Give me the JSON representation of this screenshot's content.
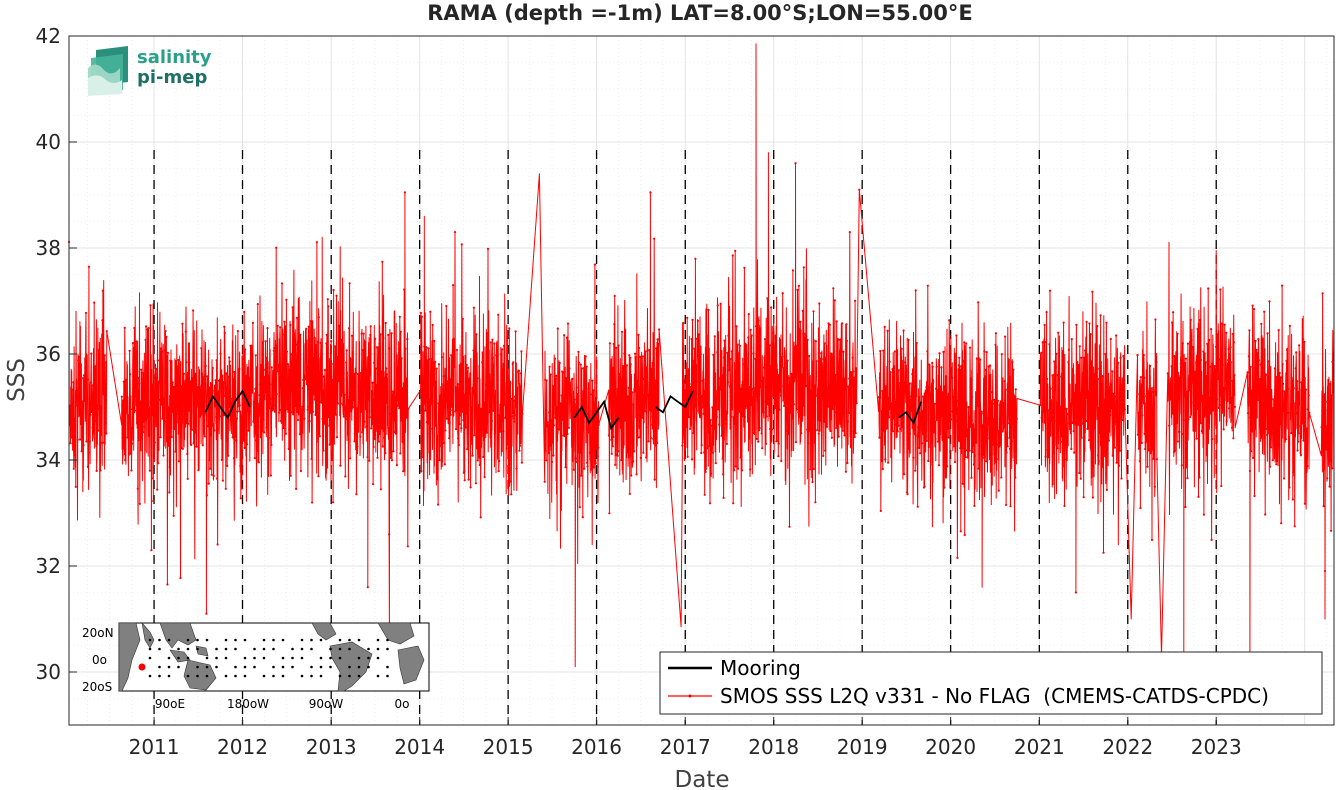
{
  "chart_data": {
    "type": "line",
    "title": "RAMA (depth =-1m) LAT=8.00°S;LON=55.00°E",
    "xlabel": "Date",
    "ylabel": "SSS",
    "xlim": [
      "2010-01-15",
      "2024-05-01"
    ],
    "ylim": [
      29,
      42
    ],
    "x_ticks": [
      "2011",
      "2012",
      "2013",
      "2014",
      "2015",
      "2016",
      "2017",
      "2018",
      "2019",
      "2020",
      "2021",
      "2022",
      "2023"
    ],
    "y_ticks": [
      "30",
      "32",
      "34",
      "36",
      "38",
      "40",
      "42"
    ],
    "grid": true,
    "year_markers": "dashed black vertical lines at each January 1",
    "legend_position": "bottom-right",
    "series": [
      {
        "name": "Mooring",
        "color": "#000000",
        "style": "line",
        "points": [
          [
            "2011-08-01",
            34.9
          ],
          [
            "2011-09-01",
            35.2
          ],
          [
            "2011-10-01",
            35.0
          ],
          [
            "2011-11-01",
            34.8
          ],
          [
            "2011-12-01",
            35.1
          ],
          [
            "2012-01-01",
            35.3
          ],
          [
            "2012-02-01",
            35.0
          ],
          [
            "2015-10-01",
            34.8
          ],
          [
            "2015-11-01",
            35.0
          ],
          [
            "2015-12-01",
            34.7
          ],
          [
            "2016-01-01",
            34.9
          ],
          [
            "2016-02-01",
            35.1
          ],
          [
            "2016-03-01",
            34.6
          ],
          [
            "2016-04-01",
            34.8
          ],
          [
            "2016-09-01",
            35.0
          ],
          [
            "2016-10-01",
            34.9
          ],
          [
            "2016-11-01",
            35.2
          ],
          [
            "2016-12-01",
            35.1
          ],
          [
            "2017-01-01",
            35.0
          ],
          [
            "2017-02-01",
            35.3
          ],
          [
            "2019-06-01",
            34.8
          ],
          [
            "2019-07-01",
            34.9
          ],
          [
            "2019-08-01",
            34.7
          ],
          [
            "2019-09-01",
            35.1
          ]
        ]
      },
      {
        "name": "SMOS SSS L2Q v331 - No FLAG  (CMEMS-CATDS-CPDC)",
        "color": "#ff0000",
        "style": "line-with-dots",
        "sampling": "daily, 2010-01-15 to 2024-04-30, with gaps",
        "mean_level": [
          [
            "2010-01-15",
            35.0
          ],
          [
            "2010-07-01",
            35.0
          ],
          [
            "2011-01-01",
            35.1
          ],
          [
            "2011-07-01",
            35.0
          ],
          [
            "2012-01-01",
            35.1
          ],
          [
            "2012-07-01",
            35.5
          ],
          [
            "2013-01-01",
            35.3
          ],
          [
            "2013-07-01",
            35.2
          ],
          [
            "2014-01-01",
            35.0
          ],
          [
            "2014-07-01",
            35.2
          ],
          [
            "2015-01-01",
            35.0
          ],
          [
            "2015-07-01",
            34.8
          ],
          [
            "2016-01-01",
            34.8
          ],
          [
            "2016-07-01",
            35.2
          ],
          [
            "2017-01-01",
            35.0
          ],
          [
            "2017-07-01",
            35.3
          ],
          [
            "2018-01-01",
            35.4
          ],
          [
            "2018-07-01",
            35.3
          ],
          [
            "2019-01-01",
            35.2
          ],
          [
            "2019-07-01",
            35.0
          ],
          [
            "2020-01-01",
            34.9
          ],
          [
            "2020-07-01",
            34.8
          ],
          [
            "2021-01-01",
            34.9
          ],
          [
            "2021-07-01",
            35.0
          ],
          [
            "2022-01-01",
            34.9
          ],
          [
            "2022-07-01",
            35.4
          ],
          [
            "2023-01-01",
            35.3
          ],
          [
            "2023-07-01",
            35.1
          ],
          [
            "2024-01-01",
            34.9
          ],
          [
            "2024-04-30",
            34.6
          ]
        ],
        "spread_sd": 0.8,
        "gaps": [
          [
            "2010-06-20",
            "2010-08-20"
          ],
          [
            "2013-11-15",
            "2014-01-05"
          ],
          [
            "2015-03-01",
            "2015-06-01"
          ],
          [
            "2016-01-10",
            "2016-02-20"
          ],
          [
            "2016-09-15",
            "2016-12-20"
          ],
          [
            "2018-12-10",
            "2019-03-10"
          ],
          [
            "2020-10-01",
            "2021-01-05"
          ],
          [
            "2021-12-20",
            "2022-02-10"
          ],
          [
            "2022-05-01",
            "2022-06-15"
          ],
          [
            "2023-03-20",
            "2023-05-10"
          ],
          [
            "2024-01-20",
            "2024-03-10"
          ]
        ],
        "extremes": [
          [
            "2017-10-20",
            41.85
          ],
          [
            "2017-12-10",
            39.8
          ],
          [
            "2018-04-01",
            39.6
          ],
          [
            "2016-08-10",
            39.05
          ],
          [
            "2013-11-01",
            39.05
          ],
          [
            "2018-12-20",
            39.1
          ],
          [
            "2015-05-10",
            39.4
          ],
          [
            "2014-01-20",
            38.6
          ],
          [
            "2012-11-25",
            38.2
          ],
          [
            "2016-12-15",
            30.85
          ],
          [
            "2015-10-05",
            30.1
          ],
          [
            "2011-08-05",
            31.1
          ],
          [
            "2022-05-20",
            30.3
          ],
          [
            "2022-08-20",
            30.3
          ],
          [
            "2023-05-20",
            30.0
          ],
          [
            "2022-01-15",
            31.0
          ],
          [
            "2013-06-01",
            31.6
          ],
          [
            "2020-05-10",
            31.6
          ],
          [
            "2021-06-01",
            31.5
          ],
          [
            "2024-03-25",
            31.0
          ]
        ]
      }
    ]
  },
  "inset_map": {
    "region": "Indo-Pacific tropics",
    "lat_ticks": [
      "20oN",
      "0o",
      "20oS"
    ],
    "lon_ticks": [
      "90oE",
      "180oW",
      "90oW",
      "0o"
    ],
    "station_marker_color": "#ff0000"
  },
  "logo": {
    "text_line1": "salinity",
    "text_line2": "pi-mep"
  }
}
